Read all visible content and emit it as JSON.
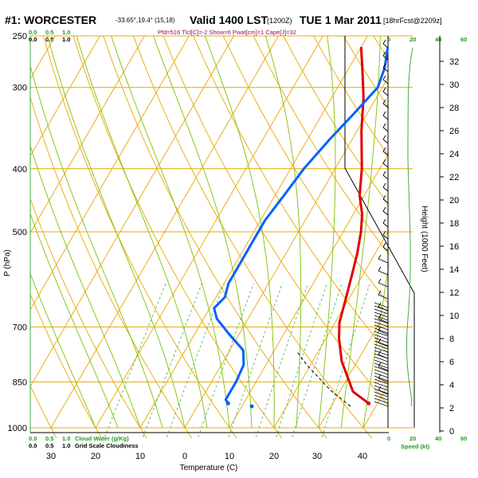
{
  "header": {
    "station": "#1: WORCESTER",
    "coords": "-33.65°,19.4° (15,18)",
    "valid": "Valid 1400 LST",
    "utc": "(1200Z)",
    "date": "TUE 1 Mar 2011",
    "forecast": "[18hrFcst@2209z]",
    "indices": "Pfd=516 Tlcl[C]=-2 Show=6 Pwat[cm]=1 Cape[J]=32"
  },
  "colors": {
    "temperature": "#e00000",
    "dewpoint": "#0060ff",
    "isobar": "#e8a800",
    "isotherm": "#e8a800",
    "dry_adiabat": "#e8a800",
    "moist_adiabat": "#80c000",
    "mixing_ratio": "#40b040",
    "height_axis": "#000000",
    "speed_axis": "#40a040",
    "cloud_axis": "#40a040"
  },
  "labels": {
    "p_axis": "P (hPa)",
    "t_axis": "Temperature (C)",
    "h_axis": "Height (1000 Feet)",
    "cloud_top": [
      "0.0",
      "0.5",
      "1.0"
    ],
    "cloud_top2": [
      "0.0",
      "0.5",
      "1.0"
    ],
    "cloud_bot": [
      "0.0",
      "0.5",
      "1.0",
      "Cloud Water (g/Kg)"
    ],
    "cloud_bot2": [
      "0.0",
      "0.5",
      "1.0",
      "Grid Scale Cloudiness"
    ],
    "speed_top": [
      "0",
      "20",
      "40",
      "60"
    ],
    "speed_bot": [
      "0",
      "20",
      "40",
      "60"
    ],
    "speed_unit": "Speed (kt)",
    "isotherm_labels": [
      "0",
      "-10"
    ],
    "dry_labels": [
      "10",
      "0",
      "-10",
      "-20",
      "-30",
      "30",
      "20"
    ],
    "mix_labels": [
      "2",
      "5",
      "10",
      "15",
      "20"
    ]
  },
  "chart_data": {
    "type": "line",
    "title": "Valid 1400 LST (1200Z) TUE 1 Mar 2011",
    "xlabel": "Temperature (C)",
    "ylabel": "P (hPa)",
    "y2label": "Height (1000 Feet)",
    "p_ticks": [
      250,
      300,
      400,
      500,
      700,
      850,
      1000
    ],
    "t_ticks": [
      30,
      20,
      10,
      0,
      10,
      20,
      30,
      40
    ],
    "h_ticks": [
      0,
      2,
      4,
      6,
      8,
      10,
      12,
      14,
      16,
      18,
      20,
      22,
      24,
      26,
      28,
      30,
      32
    ],
    "ylim": [
      1000,
      250
    ],
    "series": [
      {
        "name": "temperature",
        "points": [
          [
            38,
            917
          ],
          [
            33,
            880
          ],
          [
            26.5,
            790
          ],
          [
            23,
            730
          ],
          [
            21,
            690
          ],
          [
            19.5,
            640
          ],
          [
            17.5,
            580
          ],
          [
            16,
            540
          ],
          [
            14,
            500
          ],
          [
            12,
            470
          ],
          [
            9,
            440
          ],
          [
            6,
            400
          ],
          [
            1,
            350
          ],
          [
            -3,
            310
          ],
          [
            -7,
            280
          ],
          [
            -10,
            260
          ]
        ]
      },
      {
        "name": "dewpoint",
        "points": [
          [
            6.5,
            917
          ],
          [
            5.5,
            905
          ],
          [
            5.5,
            880
          ],
          [
            5.5,
            850
          ],
          [
            5,
            800
          ],
          [
            3,
            760
          ],
          [
            -2,
            720
          ],
          [
            -7,
            680
          ],
          [
            -9,
            655
          ],
          [
            -8,
            630
          ],
          [
            -9,
            600
          ],
          [
            -9,
            560
          ],
          [
            -9,
            520
          ],
          [
            -9,
            480
          ],
          [
            -8,
            440
          ],
          [
            -7,
            400
          ],
          [
            -5,
            360
          ],
          [
            -3,
            330
          ],
          [
            -1,
            300
          ],
          [
            -2,
            280
          ],
          [
            -4,
            260
          ]
        ]
      }
    ]
  }
}
